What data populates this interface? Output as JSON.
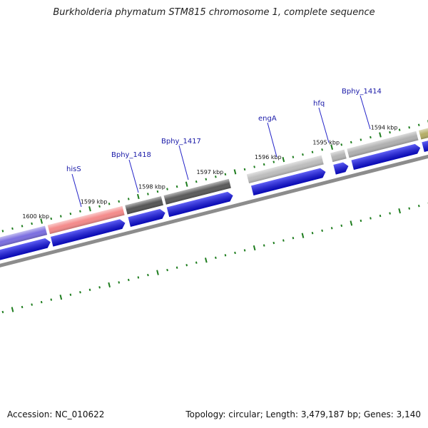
{
  "title": "Burkholderia phymatum STM815 chromosome 1, complete sequence",
  "footer": {
    "accession_label": "Accession:",
    "accession": "NC_010622",
    "topology_label": "Topology:",
    "topology": "circular",
    "length_label": "Length:",
    "length": "3,479,187 bp",
    "genes_label": "Genes:",
    "genes": "3,140"
  },
  "kbp_labels": [
    "1600 kbp",
    "1599 kbp",
    "1598 kbp",
    "1597 kbp",
    "1596 kbp",
    "1595 kbp",
    "1594 kbp"
  ],
  "genes": [
    {
      "id": "left-partial",
      "label": "",
      "color": "#7b6ee0"
    },
    {
      "id": "hisS",
      "label": "hisS",
      "color": "#f48a8a"
    },
    {
      "id": "Bphy_1418",
      "label": "Bphy_1418",
      "color": "#555555"
    },
    {
      "id": "Bphy_1417",
      "label": "Bphy_1417",
      "color": "#5a5a5a"
    },
    {
      "id": "engA",
      "label": "engA",
      "color": "#bdbdbd"
    },
    {
      "id": "hfq",
      "label": "hfq",
      "color": "#b5b5b5"
    },
    {
      "id": "Bphy_1414",
      "label": "Bphy_1414",
      "color": "#b0b0b0"
    },
    {
      "id": "right-partial",
      "label": "",
      "color": "#b4ad66"
    }
  ],
  "colors": {
    "cds": "#0b0bf0",
    "ticks": "#1e7d1e",
    "backbone": "#8c8c8c",
    "label_line": "#2323c8"
  }
}
